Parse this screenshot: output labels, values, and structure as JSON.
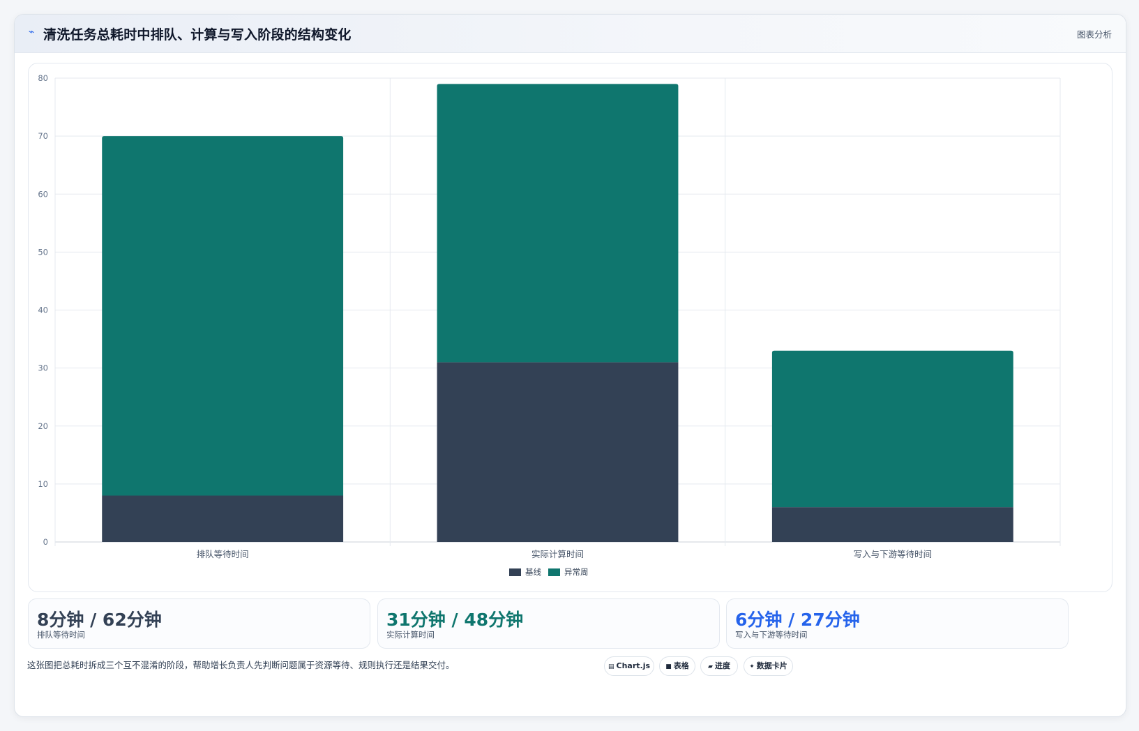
{
  "header": {
    "icon": "pulse-icon",
    "title": "清洗任务总耗时中排队、计算与写入阶段的结构变化",
    "tag": "图表分析"
  },
  "chart_data": {
    "type": "bar",
    "stacked": true,
    "categories": [
      "排队等待时间",
      "实际计算时间",
      "写入与下游等待时间"
    ],
    "series": [
      {
        "name": "基线",
        "values": [
          8,
          31,
          6
        ],
        "color": "#334155"
      },
      {
        "name": "异常周",
        "values": [
          62,
          48,
          27
        ],
        "color": "#0f766e"
      }
    ],
    "ylim": [
      0,
      80
    ],
    "yticks": [
      0,
      10,
      20,
      30,
      40,
      50,
      60,
      70,
      80
    ],
    "grid": true,
    "legend": "bottom-center"
  },
  "stats": [
    {
      "value": "8分钟 / 62分钟",
      "label": "排队等待时间",
      "color": "#334155"
    },
    {
      "value": "31分钟 / 48分钟",
      "label": "实际计算时间",
      "color": "#0f766e"
    },
    {
      "value": "6分钟 / 27分钟",
      "label": "写入与下游等待时间",
      "color": "#2563eb"
    }
  ],
  "footnote": "这张图把总耗时拆成三个互不混淆的阶段，帮助增长负责人先判断问题属于资源等待、规则执行还是结果交付。",
  "pills": [
    {
      "icon": "chart-icon",
      "glyph": "▤",
      "label": "Chart.js"
    },
    {
      "icon": "table-icon",
      "glyph": "■",
      "label": "表格"
    },
    {
      "icon": "progress-icon",
      "glyph": "▰",
      "label": "进度"
    },
    {
      "icon": "card-icon",
      "glyph": "✦",
      "label": "数据卡片"
    }
  ]
}
